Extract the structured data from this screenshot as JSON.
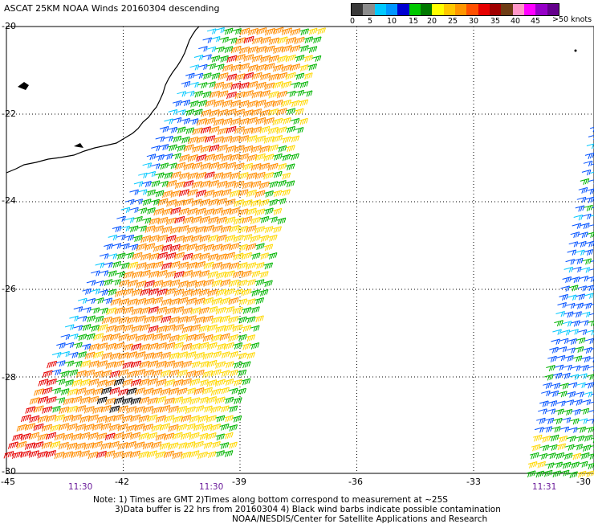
{
  "title": "ASCAT 25KM NOAA Winds 20160304 descending",
  "legend": {
    "colors": [
      "#3a3a3a",
      "#8c8c8c",
      "#00c8ff",
      "#0096ff",
      "#0000d2",
      "#00c800",
      "#007800",
      "#ffff00",
      "#ffc800",
      "#ff9600",
      "#ff5000",
      "#e60000",
      "#a00000",
      "#6e3c14",
      "#ff96c8",
      "#ff00ff",
      "#9600c8",
      "#64008c"
    ],
    "labels": [
      "0",
      "5",
      "10",
      "15",
      "20",
      "25",
      "30",
      "35",
      "40",
      "45",
      ">50 knots"
    ]
  },
  "axes": {
    "lat_labels": [
      "-20",
      "-22",
      "-24",
      "-26",
      "-28",
      "-30"
    ],
    "lon_labels": [
      "-45",
      "-42",
      "-39",
      "-36",
      "-33",
      "-30"
    ]
  },
  "times": [
    "11:30",
    "11:30",
    "11:31"
  ],
  "notes": [
    "Note: 1) Times are GMT 2)Times along bottom correspond to measurement at ~25S",
    "3)Data buffer is 22 hrs from 20160304 4) Black wind barbs indicate possible contamination",
    "NOAA/NESDIS/Center for Satellite Applications and Research"
  ]
}
